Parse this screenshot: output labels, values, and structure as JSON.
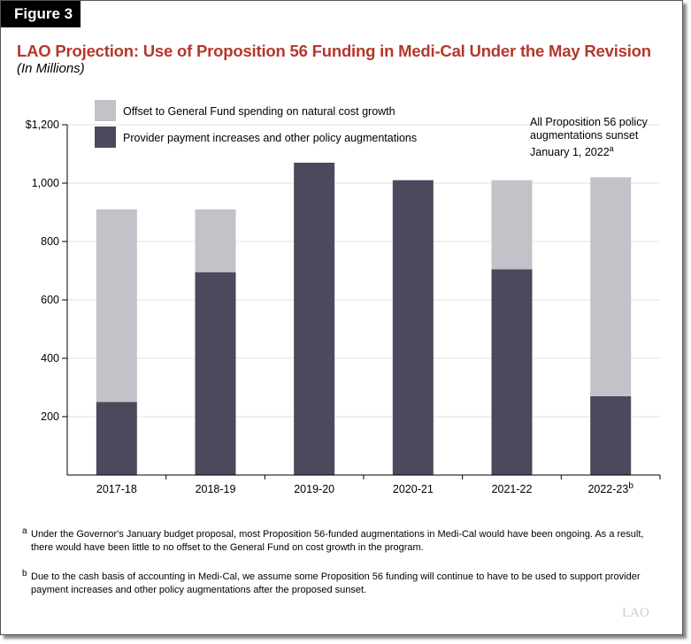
{
  "figure_label": "Figure 3",
  "chart_data": {
    "type": "bar",
    "stacked": true,
    "title": "LAO Projection: Use of Proposition 56 Funding in Medi-Cal Under the May Revision",
    "subtitle": "(In Millions)",
    "categories": [
      "2017-18",
      "2018-19",
      "2019-20",
      "2020-21",
      "2021-22",
      "2022-23"
    ],
    "category_superscripts": [
      "",
      "",
      "",
      "",
      "",
      "b"
    ],
    "series": [
      {
        "name": "Provider payment increases and other policy augmentations",
        "color": "#4a4a5c",
        "values": [
          250,
          695,
          1070,
          1010,
          705,
          270
        ]
      },
      {
        "name": "Offset to General Fund spending on natural cost growth",
        "color": "#c4c2c8",
        "values": [
          660,
          215,
          0,
          0,
          305,
          750
        ]
      }
    ],
    "ylim": [
      0,
      1200
    ],
    "yticks": [
      200,
      400,
      600,
      800,
      1000,
      1200
    ],
    "ytick_labels": [
      "200",
      "400",
      "600",
      "800",
      "1,000",
      "$1,200"
    ],
    "grid": true,
    "legend_position": "top-left",
    "annotation": {
      "text": "All Proposition 56 policy augmentations sunset January 1, 2022",
      "sup": "a"
    }
  },
  "footnotes": [
    {
      "mark": "a",
      "text": "Under the Governor's January budget proposal, most Proposition 56-funded augmentations in Medi-Cal would have been ongoing. As a result, there would have been little to no offset to the General Fund on cost growth in the program."
    },
    {
      "mark": "b",
      "text": "Due to the cash basis of accounting in Medi-Cal, we assume some Proposition 56 funding will continue to have to be used to support provider payment increases and other policy augmentations after the proposed sunset."
    }
  ],
  "logo": "LAO"
}
